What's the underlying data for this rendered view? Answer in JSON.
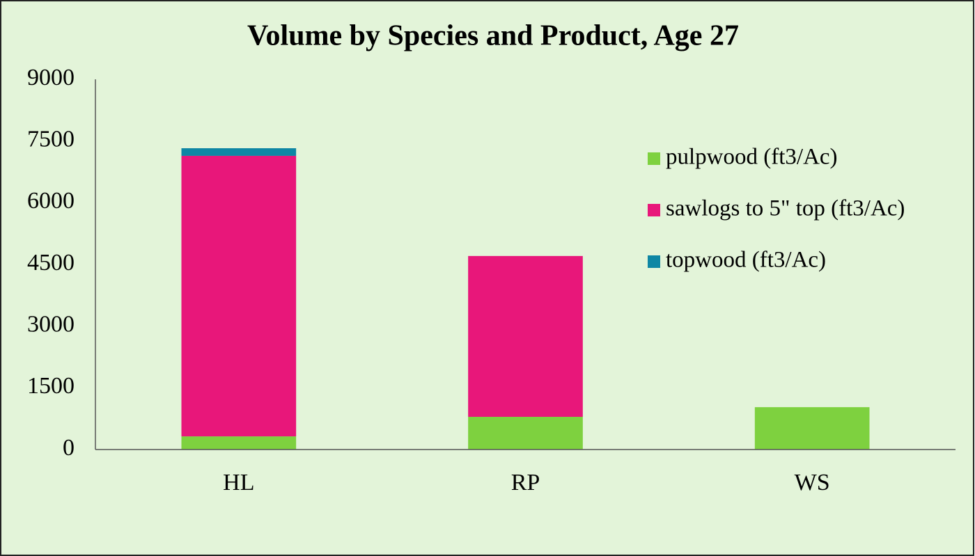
{
  "chart_data": {
    "type": "stacked_bar",
    "title": "Volume by Species and Product, Age 27",
    "categories": [
      "HL",
      "RP",
      "WS"
    ],
    "series": [
      {
        "name": "pulpwood (ft3/Ac)",
        "color": "#7ed13f",
        "values": [
          320,
          795,
          1030
        ]
      },
      {
        "name": "sawlogs to 5\" top (ft3/Ac)",
        "color": "#e8177a",
        "values": [
          6820,
          3910,
          0
        ]
      },
      {
        "name": "topwood (ft3/Ac)",
        "color": "#0e86a4",
        "values": [
          185,
          0,
          0
        ]
      }
    ],
    "ylim": [
      0,
      9000
    ],
    "yticks": [
      0,
      1500,
      3000,
      4500,
      6000,
      7500,
      9000
    ],
    "grid": false,
    "legend": "right"
  }
}
